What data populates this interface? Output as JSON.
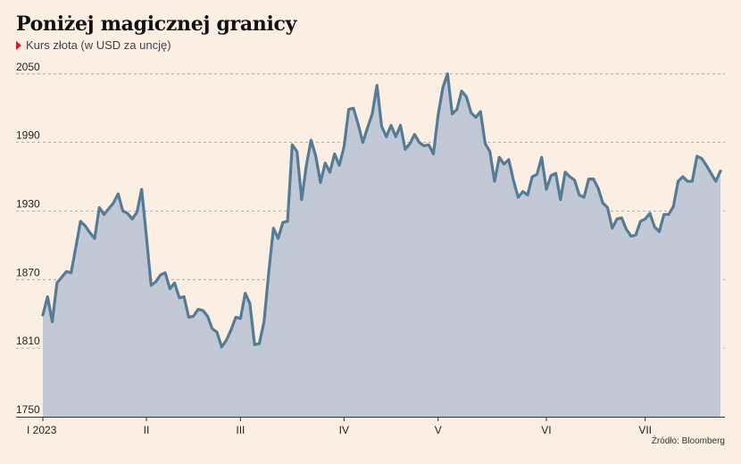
{
  "title": "Poniżej magicznej granicy",
  "subtitle": "Kurs złota (w USD za uncję)",
  "source": "Źródło: Bloomberg",
  "colors": {
    "background": "#fbeee2",
    "line": "#547c96",
    "area": "#c2c8d6",
    "grid": "#9a9a9a",
    "marker": "#d11f26"
  },
  "chart_data": {
    "type": "area",
    "title": "Poniżej magicznej granicy",
    "ylabel": "Kurs złota (w USD za uncję)",
    "ylim": [
      1750,
      2060
    ],
    "yticks": [
      1750,
      1810,
      1870,
      1930,
      1990,
      2050
    ],
    "xticks": [
      {
        "label": "I 2023",
        "index": 0
      },
      {
        "label": "II",
        "index": 22
      },
      {
        "label": "III",
        "index": 42
      },
      {
        "label": "IV",
        "index": 64
      },
      {
        "label": "V",
        "index": 84
      },
      {
        "label": "VI",
        "index": 107
      },
      {
        "label": "VII",
        "index": 128
      }
    ],
    "grid": "horizontal-dashed",
    "values": [
      1839,
      1855,
      1833,
      1867,
      1872,
      1877,
      1876,
      1898,
      1921,
      1917,
      1911,
      1906,
      1933,
      1927,
      1932,
      1937,
      1945,
      1930,
      1928,
      1923,
      1929,
      1949,
      1908,
      1865,
      1868,
      1874,
      1876,
      1862,
      1867,
      1854,
      1855,
      1837,
      1838,
      1844,
      1843,
      1838,
      1827,
      1824,
      1811,
      1817,
      1826,
      1837,
      1836,
      1858,
      1849,
      1813,
      1814,
      1833,
      1876,
      1915,
      1906,
      1920,
      1921,
      1988,
      1982,
      1940,
      1970,
      1992,
      1978,
      1955,
      1972,
      1964,
      1980,
      1970,
      1986,
      2019,
      2020,
      2006,
      1990,
      2003,
      2015,
      2040,
      2004,
      1995,
      2005,
      1995,
      2005,
      1984,
      1989,
      1997,
      1990,
      1987,
      1988,
      1980,
      2014,
      2038,
      2050,
      2015,
      2019,
      2035,
      2030,
      2016,
      2012,
      2017,
      1989,
      1982,
      1956,
      1977,
      1971,
      1975,
      1957,
      1942,
      1947,
      1944,
      1960,
      1962,
      1977,
      1949,
      1961,
      1963,
      1940,
      1964,
      1960,
      1957,
      1944,
      1942,
      1958,
      1958,
      1950,
      1937,
      1933,
      1915,
      1923,
      1924,
      1914,
      1908,
      1909,
      1921,
      1923,
      1928,
      1916,
      1912,
      1927,
      1927,
      1934,
      1956,
      1960,
      1956,
      1956,
      1978,
      1976,
      1970,
      1963,
      1956,
      1965
    ]
  }
}
